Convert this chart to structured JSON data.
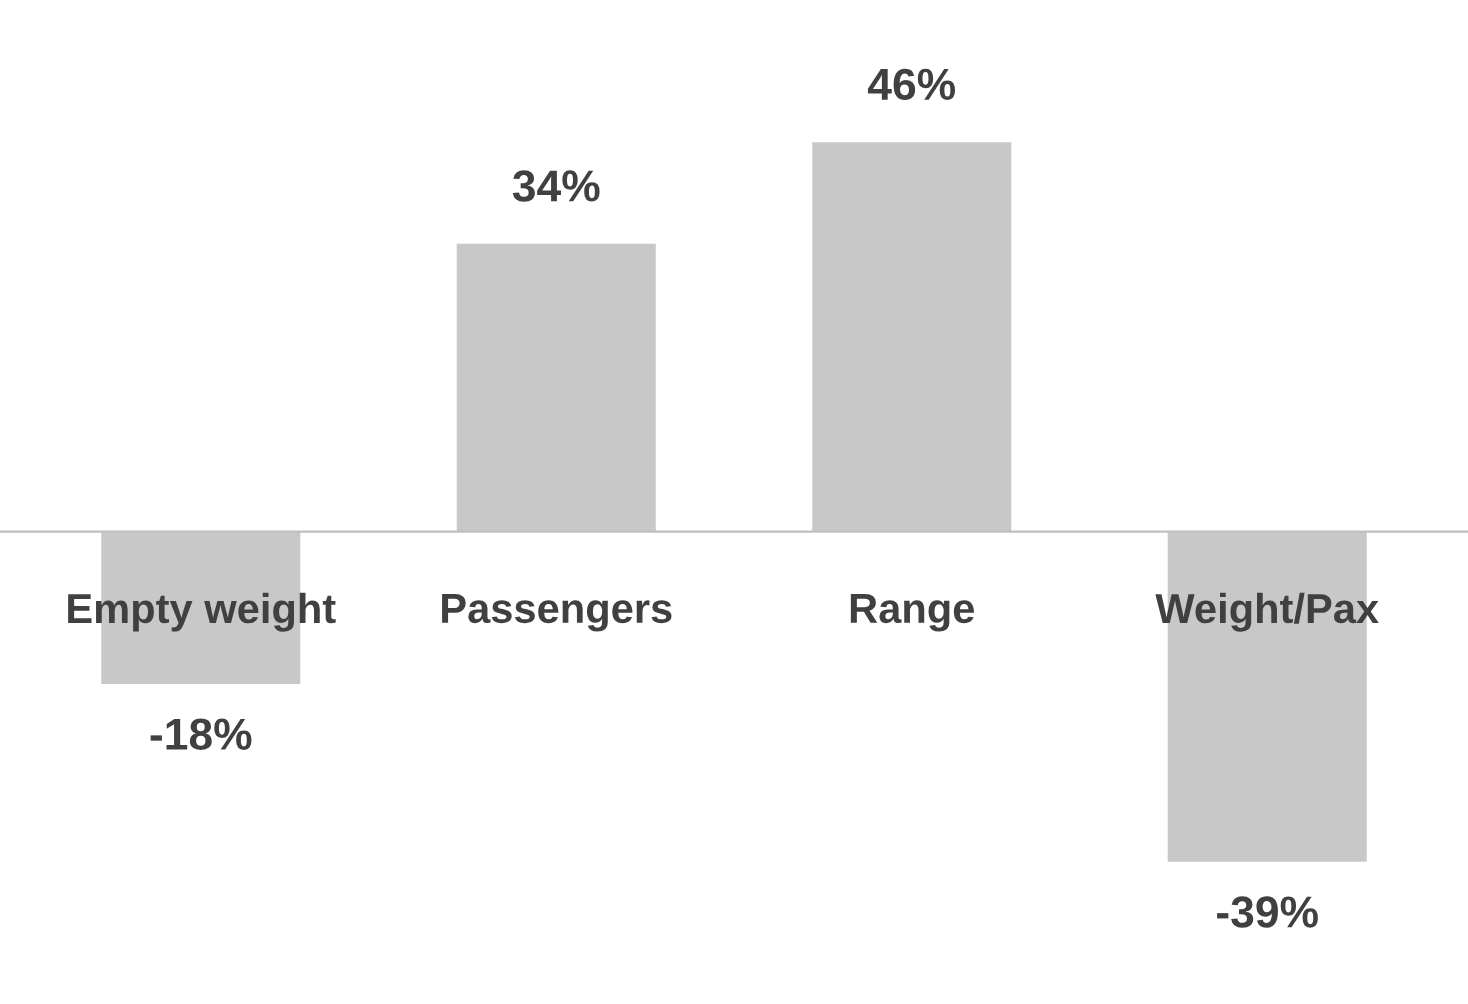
{
  "chart_data": {
    "type": "bar",
    "categories": [
      "Empty weight",
      "Passengers",
      "Range",
      "Weight/Pax"
    ],
    "values": [
      -18,
      34,
      46,
      -39
    ],
    "value_labels": [
      "-18%",
      "34%",
      "46%",
      "-39%"
    ],
    "color": "#c8c8c8",
    "grid": false,
    "legend": false
  }
}
